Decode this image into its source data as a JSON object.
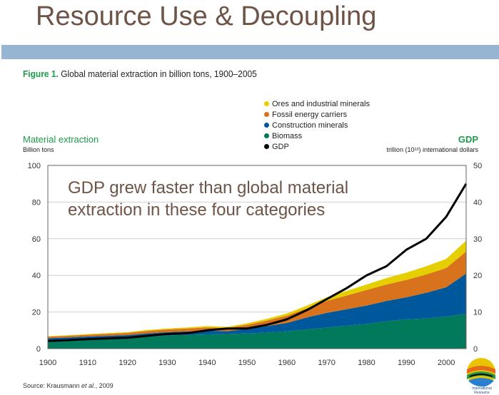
{
  "slide": {
    "title": "Resource Use & Decoupling"
  },
  "figure": {
    "label": "Figure 1.",
    "caption": "Global material extraction in billion tons, 1900–2005"
  },
  "annotation": "GDP grew faster than global material extraction in these four categories",
  "source": {
    "prefix": "Source: Krausmann ",
    "italic": "et al.",
    "suffix": ", 2009"
  },
  "logo": {
    "text": "International Resource"
  },
  "chart_data": {
    "type": "area",
    "stacked": true,
    "title": "Global material extraction in billion tons, 1900–2005",
    "left_axis": {
      "label": "Material extraction",
      "unit": "Billion tons",
      "range": [
        0,
        100
      ],
      "ticks": [
        0,
        20,
        40,
        60,
        80,
        100
      ]
    },
    "right_axis": {
      "label": "GDP",
      "unit": "trillion (10¹²) international dollars",
      "range": [
        0,
        50
      ],
      "ticks": [
        0,
        10,
        20,
        30,
        40,
        50
      ]
    },
    "x_ticks": [
      1900,
      1910,
      1920,
      1930,
      1940,
      1950,
      1960,
      1970,
      1980,
      1990,
      2000
    ],
    "x_range": [
      1900,
      2005
    ],
    "grid": true,
    "legend_position": "top-center",
    "x": [
      1900,
      1905,
      1910,
      1915,
      1920,
      1925,
      1930,
      1935,
      1940,
      1945,
      1950,
      1955,
      1960,
      1965,
      1970,
      1975,
      1980,
      1985,
      1990,
      1995,
      2000,
      2005
    ],
    "series": [
      {
        "name": "Biomass",
        "color": "#007a5a",
        "values": [
          4.5,
          4.8,
          5.2,
          5.5,
          5.8,
          6.5,
          7.2,
          7.5,
          7.8,
          8,
          8.3,
          8.8,
          9.5,
          10.5,
          11.5,
          12.5,
          13.5,
          15,
          16,
          16.5,
          17.5,
          19
        ]
      },
      {
        "name": "Construction minerals",
        "color": "#00589c",
        "values": [
          1.2,
          1.3,
          1.4,
          1.5,
          1.6,
          1.8,
          1.8,
          1.9,
          2,
          1.5,
          2.5,
          3.5,
          4.5,
          6.5,
          8,
          9,
          10,
          11,
          12,
          14,
          16,
          22
        ]
      },
      {
        "name": "Fossil energy carriers",
        "color": "#d8721c",
        "values": [
          0.8,
          0.9,
          1,
          1.1,
          1.2,
          1.4,
          1.5,
          1.6,
          1.8,
          1.8,
          2.2,
          3,
          4,
          5,
          6.5,
          7.5,
          8.5,
          9,
          9.5,
          10,
          10.5,
          12
        ]
      },
      {
        "name": "Ores and industrial minerals",
        "color": "#e5cf00",
        "values": [
          0.3,
          0.3,
          0.35,
          0.4,
          0.4,
          0.5,
          0.5,
          0.6,
          0.7,
          0.6,
          0.8,
          1,
          1.2,
          1.5,
          2,
          2.5,
          3,
          3.5,
          4,
          4.5,
          5,
          6
        ]
      }
    ],
    "line_series": {
      "name": "GDP",
      "axis": "right",
      "color": "#000000",
      "values": [
        2.1,
        2.3,
        2.6,
        2.8,
        3,
        3.5,
        4,
        4.2,
        5,
        5.5,
        5.5,
        6.5,
        8,
        10.5,
        13.5,
        16.5,
        20,
        22.5,
        27,
        30,
        36,
        45
      ]
    },
    "legend": [
      {
        "name": "Ores and industrial minerals",
        "color": "#e5cf00"
      },
      {
        "name": "Fossil energy carriers",
        "color": "#d8721c"
      },
      {
        "name": "Construction minerals",
        "color": "#00589c"
      },
      {
        "name": "Biomass",
        "color": "#007a5a"
      },
      {
        "name": "GDP",
        "color": "#000000"
      }
    ]
  }
}
